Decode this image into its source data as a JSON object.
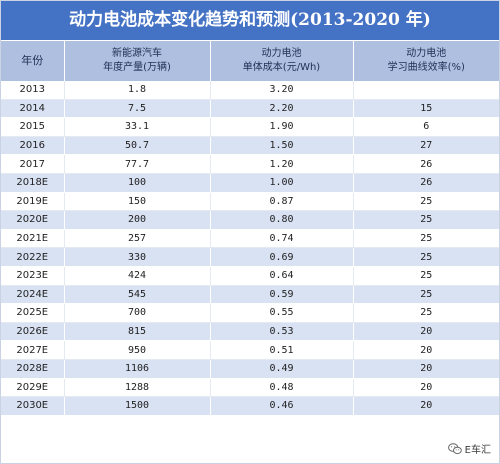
{
  "title": "动力电池成本变化趋势和预测(2013-2020 年)",
  "headers": [
    [
      "年份"
    ],
    [
      "新能源汽车",
      "年度产量(万辆)"
    ],
    [
      "动力电池",
      "单体成本(元/Wh)"
    ],
    [
      "动力电池",
      "学习曲线效率(%)"
    ]
  ],
  "rows": [
    [
      "2013",
      "1.8",
      "3.20",
      ""
    ],
    [
      "2014",
      "7.5",
      "2.20",
      "15"
    ],
    [
      "2015",
      "33.1",
      "1.90",
      "6"
    ],
    [
      "2016",
      "50.7",
      "1.50",
      "27"
    ],
    [
      "2017",
      "77.7",
      "1.20",
      "26"
    ],
    [
      "2018E",
      "100",
      "1.00",
      "26"
    ],
    [
      "2019E",
      "150",
      "0.87",
      "25"
    ],
    [
      "2020E",
      "200",
      "0.80",
      "25"
    ],
    [
      "2021E",
      "257",
      "0.74",
      "25"
    ],
    [
      "2022E",
      "330",
      "0.69",
      "25"
    ],
    [
      "2023E",
      "424",
      "0.64",
      "25"
    ],
    [
      "2024E",
      "545",
      "0.59",
      "25"
    ],
    [
      "2025E",
      "700",
      "0.55",
      "25"
    ],
    [
      "2026E",
      "815",
      "0.53",
      "20"
    ],
    [
      "2027E",
      "950",
      "0.51",
      "20"
    ],
    [
      "2028E",
      "1106",
      "0.49",
      "20"
    ],
    [
      "2029E",
      "1288",
      "0.48",
      "20"
    ],
    [
      "2030E",
      "1500",
      "0.46",
      "20"
    ]
  ],
  "watermark": {
    "text": "E车汇",
    "icon": "wechat-icon"
  }
}
